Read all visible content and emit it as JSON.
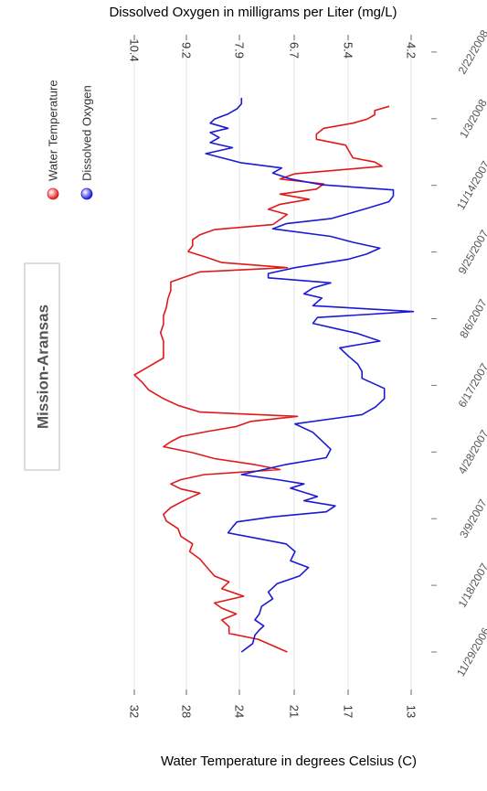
{
  "chart_data": {
    "type": "line",
    "orientation": "rotated-90",
    "station": "Mission-Aransas",
    "top_axis_title": "Dissolved Oxygen in milligrams per Liter (mg/L)",
    "bottom_axis_title": "Water Temperature in degrees Celsius (C)",
    "do_ticks": [
      "10.4",
      "9.2",
      "7.9",
      "6.7",
      "5.4",
      "4.2"
    ],
    "temp_ticks": [
      "32",
      "28",
      "24",
      "21",
      "17",
      "13"
    ],
    "dates": [
      "11/29/2006",
      "1/18/2007",
      "3/9/2007",
      "4/28/2007",
      "6/17/2007",
      "8/6/2007",
      "9/25/2007",
      "11/14/2007",
      "1/3/2008",
      "2/22/2008"
    ],
    "grid": true,
    "legend_position": "top-left",
    "legend": [
      {
        "name": "Water Temperature",
        "color": "#e01919"
      },
      {
        "name": "Dissolved Oxygen",
        "color": "#1919d6"
      }
    ],
    "series": [
      {
        "name": "Water Temperature",
        "color": "#e01919",
        "points": [
          [
            0,
            21.5
          ],
          [
            15,
            23.5
          ],
          [
            22,
            25.5
          ],
          [
            30,
            25.5
          ],
          [
            38,
            26
          ],
          [
            45,
            25
          ],
          [
            52,
            26
          ],
          [
            58,
            26.5
          ],
          [
            66,
            24.5
          ],
          [
            75,
            26
          ],
          [
            83,
            25.5
          ],
          [
            90,
            26.5
          ],
          [
            100,
            27
          ],
          [
            110,
            27.5
          ],
          [
            119,
            28.2
          ],
          [
            128,
            28
          ],
          [
            137,
            28.8
          ],
          [
            146,
            29
          ],
          [
            155,
            29.8
          ],
          [
            163,
            30
          ],
          [
            171,
            29.5
          ],
          [
            180,
            28.5
          ],
          [
            188,
            27.5
          ],
          [
            193,
            28.8
          ],
          [
            199,
            29.5
          ],
          [
            204,
            28.8
          ],
          [
            210,
            27.2
          ],
          [
            216,
            22
          ],
          [
            222,
            23.8
          ],
          [
            229,
            26.5
          ],
          [
            236,
            28
          ],
          [
            243,
            30
          ],
          [
            249,
            29.5
          ],
          [
            255,
            28.8
          ],
          [
            261,
            27
          ],
          [
            267,
            25
          ],
          [
            273,
            24
          ],
          [
            279,
            20.8
          ],
          [
            284,
            27.5
          ],
          [
            292,
            29
          ],
          [
            300,
            30
          ],
          [
            310,
            31
          ],
          [
            320,
            31.5
          ],
          [
            328,
            32
          ],
          [
            338,
            31
          ],
          [
            348,
            30
          ],
          [
            358,
            30
          ],
          [
            368,
            30
          ],
          [
            378,
            30.2
          ],
          [
            388,
            30
          ],
          [
            398,
            30
          ],
          [
            408,
            29.8
          ],
          [
            418,
            29.7
          ],
          [
            428,
            29.5
          ],
          [
            438,
            29.5
          ],
          [
            444,
            28.5
          ],
          [
            450,
            27.5
          ],
          [
            455,
            21.5
          ],
          [
            461,
            26
          ],
          [
            467,
            27
          ],
          [
            474,
            28.3
          ],
          [
            481,
            28
          ],
          [
            488,
            28
          ],
          [
            494,
            27.5
          ],
          [
            500,
            26.5
          ],
          [
            506,
            22.5
          ],
          [
            512,
            22
          ],
          [
            518,
            21.5
          ],
          [
            524,
            22.8
          ],
          [
            530,
            22
          ],
          [
            536,
            20
          ],
          [
            542,
            22
          ],
          [
            548,
            19.5
          ],
          [
            554,
            19
          ],
          [
            560,
            22
          ],
          [
            566,
            21
          ],
          [
            575,
            15
          ],
          [
            580,
            15.5
          ],
          [
            585,
            17
          ],
          [
            591,
            17.2
          ],
          [
            600,
            17.5
          ],
          [
            607,
            19.5
          ],
          [
            613,
            19.5
          ],
          [
            620,
            19
          ],
          [
            626,
            17
          ],
          [
            631,
            16
          ],
          [
            636,
            15.5
          ],
          [
            641,
            15.5
          ],
          [
            646,
            14.5
          ]
        ]
      },
      {
        "name": "Dissolved Oxygen",
        "color": "#1919d6",
        "points": [
          [
            0,
            8.0
          ],
          [
            10,
            7.75
          ],
          [
            20,
            7.7
          ],
          [
            26,
            7.6
          ],
          [
            31,
            7.5
          ],
          [
            38,
            7.7
          ],
          [
            45,
            7.6
          ],
          [
            54,
            7.55
          ],
          [
            63,
            7.3
          ],
          [
            71,
            7.4
          ],
          [
            81,
            7.2
          ],
          [
            90,
            6.7
          ],
          [
            100,
            6.5
          ],
          [
            108,
            6.9
          ],
          [
            119,
            6.8
          ],
          [
            128,
            7.0
          ],
          [
            134,
            7.6
          ],
          [
            141,
            8.3
          ],
          [
            148,
            8.2
          ],
          [
            154,
            8.1
          ],
          [
            160,
            7.3
          ],
          [
            166,
            6.1
          ],
          [
            173,
            5.9
          ],
          [
            179,
            6.6
          ],
          [
            184,
            6.3
          ],
          [
            189,
            6.6
          ],
          [
            194,
            6.9
          ],
          [
            199,
            6.6
          ],
          [
            204,
            7.2
          ],
          [
            210,
            8.0
          ],
          [
            216,
            7.5
          ],
          [
            222,
            7.0
          ],
          [
            230,
            6.1
          ],
          [
            240,
            6.0
          ],
          [
            250,
            6.2
          ],
          [
            260,
            6.4
          ],
          [
            270,
            6.8
          ],
          [
            281,
            5.3
          ],
          [
            290,
            5.0
          ],
          [
            300,
            4.8
          ],
          [
            312,
            4.8
          ],
          [
            324,
            5.3
          ],
          [
            332,
            5.3
          ],
          [
            341,
            5.4
          ],
          [
            350,
            5.6
          ],
          [
            360,
            5.8
          ],
          [
            368,
            4.9
          ],
          [
            377,
            5.4
          ],
          [
            383,
            5.9
          ],
          [
            389,
            6.4
          ],
          [
            396,
            6.3
          ],
          [
            403,
            4.15
          ],
          [
            410,
            6.4
          ],
          [
            419,
            6.2
          ],
          [
            424,
            6.6
          ],
          [
            431,
            6.4
          ],
          [
            437,
            6.0
          ],
          [
            443,
            7.4
          ],
          [
            448,
            7.4
          ],
          [
            455,
            6.8
          ],
          [
            460,
            6.2
          ],
          [
            465,
            5.6
          ],
          [
            471,
            5.2
          ],
          [
            478,
            4.9
          ],
          [
            485,
            5.5
          ],
          [
            492,
            6.0
          ],
          [
            501,
            7.3
          ],
          [
            507,
            7.0
          ],
          [
            513,
            6.0
          ],
          [
            519,
            5.6
          ],
          [
            525,
            5.2
          ],
          [
            533,
            4.7
          ],
          [
            540,
            4.6
          ],
          [
            547,
            4.6
          ],
          [
            553,
            6.2
          ],
          [
            560,
            6.9
          ],
          [
            567,
            7.3
          ],
          [
            573,
            7.1
          ],
          [
            579,
            8.0
          ],
          [
            590,
            8.8
          ],
          [
            597,
            8.2
          ],
          [
            603,
            8.7
          ],
          [
            609,
            8.5
          ],
          [
            615,
            8.7
          ],
          [
            620,
            8.3
          ],
          [
            626,
            8.7
          ],
          [
            631,
            8.6
          ],
          [
            637,
            8.3
          ],
          [
            643,
            8.1
          ],
          [
            649,
            8.0
          ],
          [
            656,
            8.0
          ]
        ]
      }
    ]
  }
}
